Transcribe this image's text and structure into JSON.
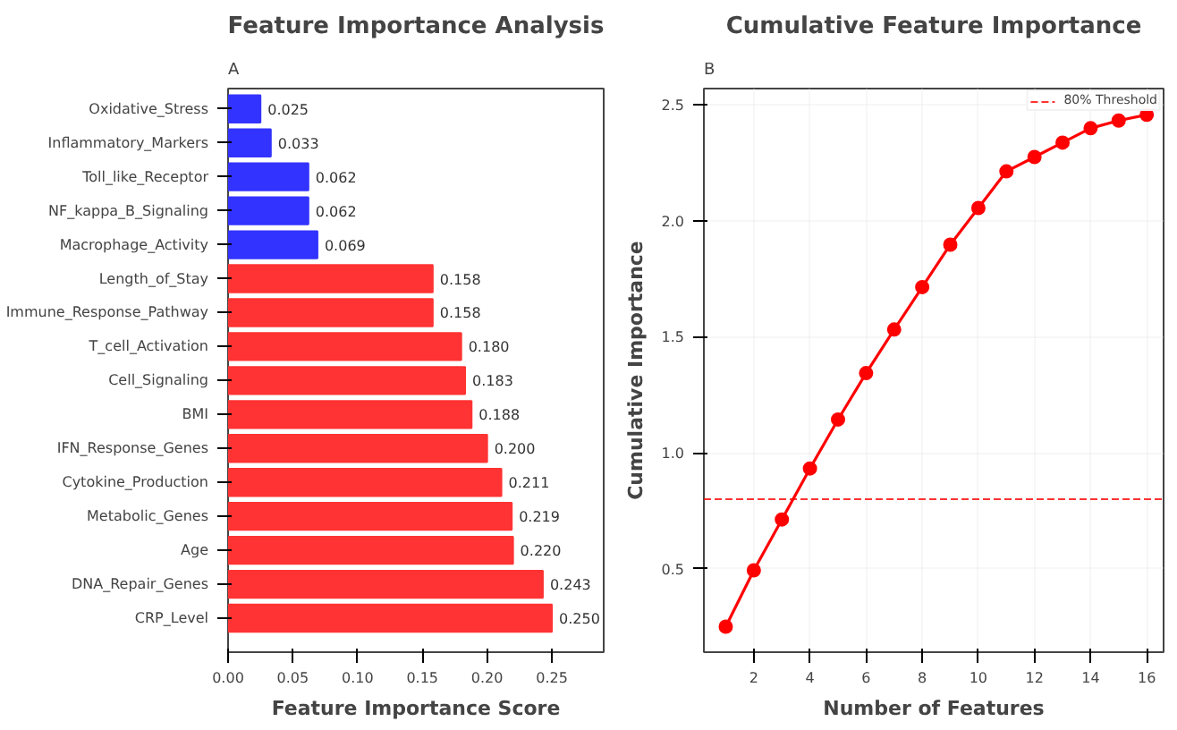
{
  "chart_data": [
    {
      "type": "bar",
      "orientation": "horizontal",
      "title": "Feature Importance Analysis",
      "xlabel": "Feature Importance Score",
      "annotations": [
        "A"
      ],
      "categories": [
        "Oxidative_Stress",
        "Inflammatory_Markers",
        "Toll_like_Receptor",
        "NF_kappa_B_Signaling",
        "Macrophage_Activity",
        "Length_of_Stay",
        "Immune_Response_Pathway",
        "T_cell_Activation",
        "Cell_Signaling",
        "BMI",
        "IFN_Response_Genes",
        "Cytokine_Production",
        "Metabolic_Genes",
        "Age",
        "DNA_Repair_Genes",
        "CRP_Level"
      ],
      "values": [
        0.025,
        0.033,
        0.062,
        0.062,
        0.069,
        0.158,
        0.158,
        0.18,
        0.183,
        0.188,
        0.2,
        0.211,
        0.219,
        0.22,
        0.243,
        0.25
      ],
      "value_labels": [
        "0.025",
        "0.033",
        "0.062",
        "0.062",
        "0.069",
        "0.158",
        "0.158",
        "0.180",
        "0.183",
        "0.188",
        "0.200",
        "0.211",
        "0.219",
        "0.220",
        "0.243",
        "0.250"
      ],
      "colors": [
        "#3333ff",
        "#3333ff",
        "#3333ff",
        "#3333ff",
        "#3333ff",
        "#ff3333",
        "#ff3333",
        "#ff3333",
        "#ff3333",
        "#ff3333",
        "#ff3333",
        "#ff3333",
        "#ff3333",
        "#ff3333",
        "#ff3333",
        "#ff3333"
      ],
      "xlim": [
        0,
        0.29
      ],
      "xticks": [
        {
          "value": 0,
          "label": "0.00"
        },
        {
          "value": 0.05,
          "label": "0.05"
        },
        {
          "value": 0.1,
          "label": "0.10"
        },
        {
          "value": 0.15,
          "label": "0.15"
        },
        {
          "value": 0.2,
          "label": "0.20"
        },
        {
          "value": 0.25,
          "label": "0.25"
        }
      ],
      "grid": false
    },
    {
      "type": "line",
      "title": "Cumulative Feature Importance",
      "xlabel": "Number of Features",
      "ylabel": "Cumulative Importance",
      "annotations": [
        "B"
      ],
      "x": [
        1,
        2,
        3,
        4,
        5,
        6,
        7,
        8,
        9,
        10,
        11,
        12,
        13,
        14,
        15,
        16
      ],
      "series": [
        {
          "color": "#ff0000",
          "values": [
            0.25,
            0.493,
            0.712,
            0.932,
            1.143,
            1.343,
            1.531,
            1.714,
            1.897,
            2.055,
            2.213,
            2.275,
            2.337,
            2.399,
            2.432,
            2.457
          ]
        }
      ],
      "marker": "circle",
      "line_style": "solid",
      "xlim": [
        0.22,
        16.6
      ],
      "xticks": [
        2,
        4,
        6,
        8,
        10,
        12,
        14,
        16
      ],
      "ylim": [
        0.14,
        2.57
      ],
      "yticks": [
        {
          "value": 0.5,
          "label": "0.5"
        },
        {
          "value": 1.0,
          "label": "1.0"
        },
        {
          "value": 1.5,
          "label": "1.5"
        },
        {
          "value": 2.0,
          "label": "2.0"
        },
        {
          "value": 2.5,
          "label": "2.5"
        }
      ],
      "ref_lines": [
        {
          "axis": "y",
          "value": 0.8,
          "label": "80% Threshold",
          "color": "#ff0000",
          "line_style": "dashed"
        }
      ],
      "grid": true,
      "legend": "top right"
    }
  ]
}
